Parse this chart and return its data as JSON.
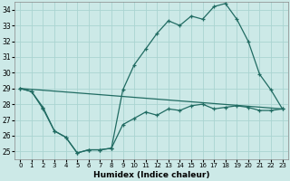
{
  "xlabel": "Humidex (Indice chaleur)",
  "background_color": "#cce9e7",
  "grid_color": "#aad4d1",
  "line_color": "#206b62",
  "xlim": [
    -0.5,
    23.5
  ],
  "ylim": [
    24.5,
    34.5
  ],
  "xticks": [
    0,
    1,
    2,
    3,
    4,
    5,
    6,
    7,
    8,
    9,
    10,
    11,
    12,
    13,
    14,
    15,
    16,
    17,
    18,
    19,
    20,
    21,
    22,
    23
  ],
  "yticks": [
    25,
    26,
    27,
    28,
    29,
    30,
    31,
    32,
    33,
    34
  ],
  "line1_x": [
    0,
    1,
    2,
    3,
    4,
    5,
    6,
    7,
    8,
    9,
    10,
    11,
    12,
    13,
    14,
    15,
    16,
    17,
    18,
    19,
    20,
    21,
    22,
    23
  ],
  "line1_y": [
    29.0,
    28.8,
    27.7,
    26.3,
    25.9,
    24.9,
    25.1,
    25.1,
    25.2,
    28.9,
    30.5,
    31.5,
    32.5,
    33.3,
    33.0,
    33.6,
    33.4,
    34.2,
    34.4,
    33.4,
    32.0,
    29.9,
    28.9,
    27.7
  ],
  "line2_x": [
    0,
    1,
    2,
    3,
    4,
    5,
    6,
    7,
    8,
    9,
    10,
    11,
    12,
    13,
    14,
    15,
    16,
    17,
    18,
    19,
    20,
    21,
    22,
    23
  ],
  "line2_y": [
    29.0,
    28.8,
    27.8,
    26.3,
    25.9,
    24.9,
    25.1,
    25.1,
    25.2,
    26.7,
    27.1,
    27.5,
    27.3,
    27.7,
    27.6,
    27.9,
    28.0,
    27.7,
    27.8,
    27.9,
    27.8,
    27.6,
    27.6,
    27.7
  ],
  "line3_x": [
    0,
    23
  ],
  "line3_y": [
    29.0,
    27.7
  ]
}
